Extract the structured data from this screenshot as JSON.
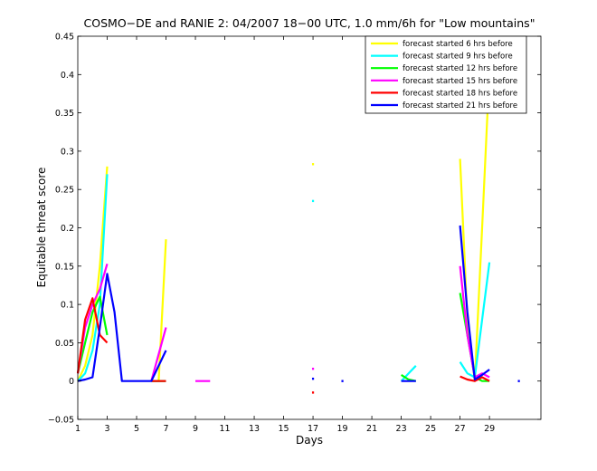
{
  "chart_data": {
    "type": "line",
    "title": "COSMO−DE and RANIE 2: 04/2007 18−00 UTC, 1.0 mm/6h for \"Low mountains\"",
    "xlabel": "Days",
    "ylabel": "Equitable threat score",
    "xlim": [
      1,
      32.5
    ],
    "ylim": [
      -0.05,
      0.45
    ],
    "xticks": [
      1,
      3,
      5,
      7,
      9,
      11,
      13,
      15,
      17,
      19,
      21,
      23,
      25,
      27,
      29
    ],
    "yticks": [
      -0.05,
      0,
      0.05,
      0.1,
      0.15,
      0.2,
      0.25,
      0.3,
      0.35,
      0.4,
      0.45
    ],
    "ytick_labels": [
      "−0.05",
      "0",
      "0.05",
      "0.1",
      "0.15",
      "0.2",
      "0.25",
      "0.3",
      "0.35",
      "0.4",
      "0.45"
    ],
    "grid": false,
    "legend_position": "top-right",
    "series": [
      {
        "name": "forecast started 6 hrs before",
        "color": "#ffff00",
        "x": [
          1,
          1.5,
          2,
          2.5,
          3,
          6,
          6.5,
          7,
          17,
          27,
          27.5,
          28,
          28.5,
          29
        ],
        "y": [
          0,
          0.02,
          0.06,
          0.15,
          0.28,
          0,
          0,
          0.185,
          0.283,
          0.29,
          0.08,
          0,
          0.2,
          0.405
        ]
      },
      {
        "name": "forecast started 9 hrs before",
        "color": "#00ffff",
        "x": [
          1,
          1.5,
          2,
          2.5,
          3,
          6,
          6.5,
          7,
          17,
          23,
          23.5,
          24,
          27,
          27.5,
          28,
          28.5,
          29
        ],
        "y": [
          0,
          0.01,
          0.04,
          0.1,
          0.27,
          0,
          0,
          0,
          0.235,
          0,
          0.01,
          0.02,
          0.025,
          0.01,
          0.005,
          0.08,
          0.155
        ]
      },
      {
        "name": "forecast started 12 hrs before",
        "color": "#00ff00",
        "x": [
          1,
          1.5,
          2,
          2.5,
          3,
          6,
          6.5,
          7,
          23,
          23.5,
          24,
          27,
          27.5,
          28,
          28.5,
          29
        ],
        "y": [
          0.01,
          0.05,
          0.09,
          0.11,
          0.06,
          0,
          0,
          0,
          0.008,
          0.002,
          0,
          0.115,
          0.06,
          0.005,
          0,
          0
        ]
      },
      {
        "name": "forecast started 15 hrs before",
        "color": "#ff00ff",
        "x": [
          1,
          1.5,
          2,
          2.5,
          3,
          6,
          6.5,
          7,
          9,
          9.5,
          10,
          17,
          27,
          27.5,
          28,
          28.5,
          29
        ],
        "y": [
          0.01,
          0.07,
          0.1,
          0.12,
          0.153,
          0,
          0.035,
          0.07,
          0,
          0,
          0,
          0.016,
          0.15,
          0.06,
          0.005,
          0.01,
          0.005
        ]
      },
      {
        "name": "forecast started 18 hrs before",
        "color": "#ff0000",
        "x": [
          1,
          1.5,
          2,
          2.5,
          3,
          6,
          6.5,
          7,
          17,
          27,
          27.5,
          28,
          28.5,
          29
        ],
        "y": [
          0.01,
          0.08,
          0.108,
          0.06,
          0.05,
          0,
          0,
          0,
          -0.015,
          0.006,
          0.002,
          0,
          0.005,
          0
        ]
      },
      {
        "name": "forecast started 21 hrs before",
        "color": "#0000ff",
        "x": [
          1,
          1.5,
          2,
          2.5,
          3,
          3.5,
          4,
          4.5,
          5,
          5.5,
          6,
          6.5,
          7,
          17,
          19,
          23,
          23.5,
          24,
          27,
          27.5,
          28,
          28.5,
          29,
          31
        ],
        "y": [
          0,
          0.002,
          0.005,
          0.07,
          0.14,
          0.09,
          0,
          0,
          0,
          0,
          0,
          0.02,
          0.04,
          0.003,
          0,
          0,
          0,
          0,
          0.203,
          0.09,
          0.002,
          0.008,
          0.015,
          0
        ]
      }
    ]
  }
}
